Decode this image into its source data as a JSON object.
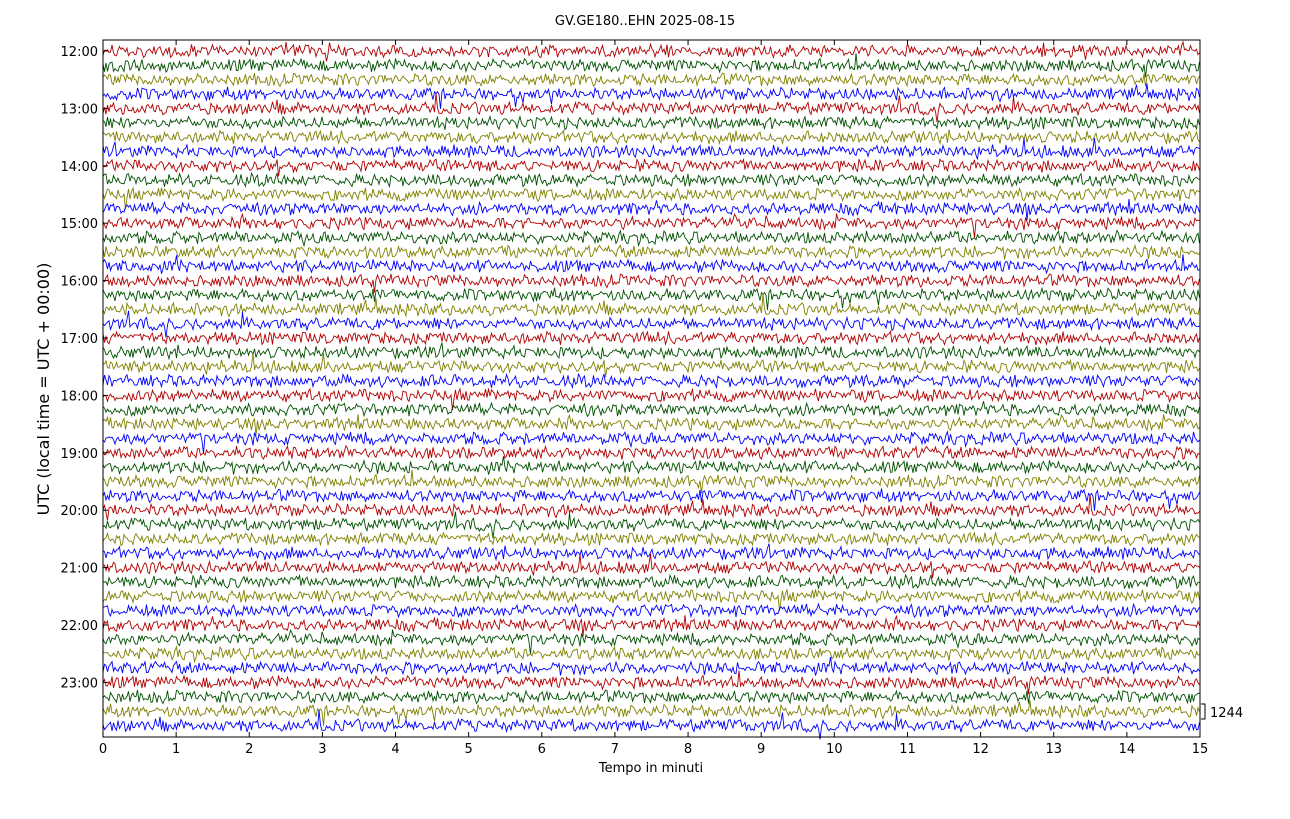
{
  "chart_data": {
    "type": "line",
    "title": "GV.GE180..EHN 2025-08-15",
    "xlabel": "Tempo in minuti",
    "ylabel": "UTC (local time = UTC + 00:00)",
    "xlim": [
      0,
      15
    ],
    "x_ticks": [
      "0",
      "1",
      "2",
      "3",
      "4",
      "5",
      "6",
      "7",
      "8",
      "9",
      "10",
      "11",
      "12",
      "13",
      "14",
      "15"
    ],
    "y_ticks": [
      "12:00",
      "13:00",
      "14:00",
      "15:00",
      "16:00",
      "17:00",
      "18:00",
      "19:00",
      "20:00",
      "21:00",
      "22:00",
      "23:00"
    ],
    "trace_start": "12:00",
    "trace_interval_minutes": 15,
    "trace_count": 48,
    "trace_colors": [
      "#b00000",
      "#005000",
      "#808000",
      "#0000ff"
    ],
    "scale_label": "1244",
    "grid": false
  }
}
